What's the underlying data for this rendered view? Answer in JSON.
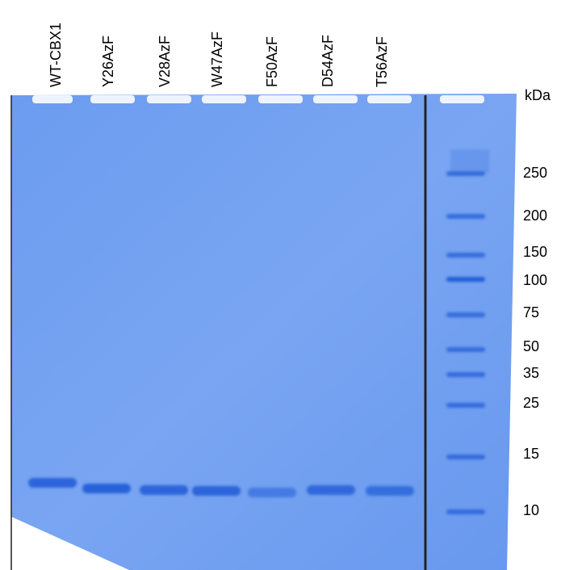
{
  "lanes": [
    "WT-CBX1",
    "Y26AzF",
    "V28AzF",
    "W47AzF",
    "F50AzF",
    "D54AzF",
    "T56AzF"
  ],
  "unit": "kDa",
  "markers": [
    250,
    200,
    150,
    100,
    75,
    50,
    35,
    25,
    15,
    10
  ]
}
